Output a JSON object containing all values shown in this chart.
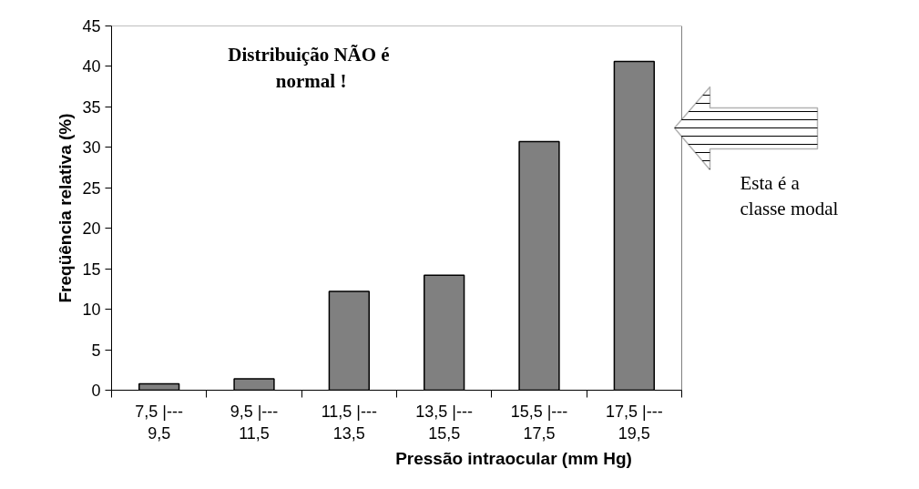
{
  "chart_data": {
    "type": "bar",
    "categories": [
      "7,5 |---\n9,5",
      "9,5 |---\n11,5",
      "11,5 |---\n13,5",
      "13,5 |---\n15,5",
      "15,5 |---\n17,5",
      "17,5 |---\n19,5"
    ],
    "values": [
      0.8,
      1.4,
      12.2,
      14.2,
      30.7,
      40.6
    ],
    "color": "#808080",
    "xlabel": "Pressão intraocular (mm Hg)",
    "ylabel": "Freqüência relativa (%)",
    "ylim": [
      0,
      45
    ],
    "yticks": [
      0,
      5,
      10,
      15,
      20,
      25,
      30,
      35,
      40,
      45
    ],
    "grid": false,
    "annotations": [
      "Distribuição NÃO  é\nnormal !",
      "Esta é a\nclasse modal"
    ]
  }
}
